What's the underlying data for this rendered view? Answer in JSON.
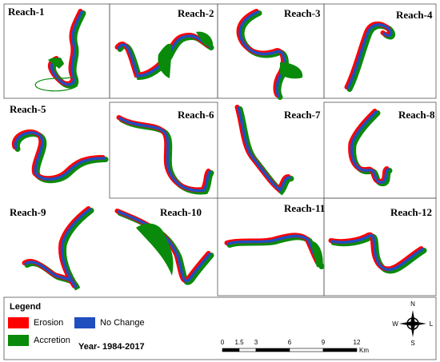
{
  "panels": [
    {
      "label": "Reach-1"
    },
    {
      "label": "Reach-2"
    },
    {
      "label": "Reach-3"
    },
    {
      "label": "Reach-4"
    },
    {
      "label": "Reach-5"
    },
    {
      "label": "Reach-6"
    },
    {
      "label": "Reach-7"
    },
    {
      "label": "Reach-8"
    },
    {
      "label": "Reach-9"
    },
    {
      "label": "Reach-10"
    },
    {
      "label": "Reach-11"
    },
    {
      "label": "Reach-12"
    }
  ],
  "legend": {
    "title": "Legend",
    "items": [
      {
        "label": "Erosion",
        "color": "#ff0000"
      },
      {
        "label": "No Change",
        "color": "#1f4fbf"
      },
      {
        "label": "Accretion",
        "color": "#0a8a0a"
      }
    ]
  },
  "period": "Year- 1984-2017",
  "scale_bar": {
    "ticks": [
      0,
      1.5,
      3,
      6,
      9,
      12
    ],
    "unit": "Km"
  },
  "north_arrow": {
    "n": "N",
    "s": "S",
    "w": "W",
    "e": "L"
  }
}
